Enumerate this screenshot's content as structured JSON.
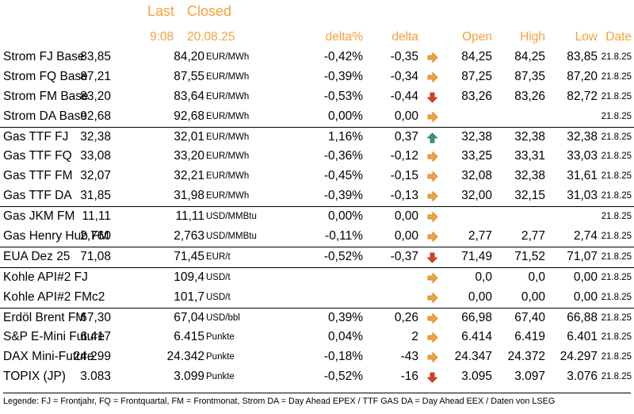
{
  "header": {
    "last_label": "Last",
    "closed_label": "Closed",
    "last_time": "9:08",
    "closed_date": "20.08.25",
    "col_pct": "delta%",
    "col_delta": "delta",
    "col_open": "Open",
    "col_high": "High",
    "col_low": "Low",
    "col_date": "Date"
  },
  "colors": {
    "orange": "#f6a23a",
    "arrow_right": "#f6a23a",
    "arrow_down": "#e0401e",
    "arrow_up": "#3c9a6a"
  },
  "rows": [
    {
      "name": "Strom FJ Base",
      "last": "83,85",
      "closed": "84,20",
      "unit": "EUR/MWh",
      "pct": "-0,42%",
      "delta": "-0,35",
      "arrow": "right",
      "open": "84,25",
      "high": "84,25",
      "low": "83,85",
      "date": "21.8.25",
      "sep": false
    },
    {
      "name": "Strom FQ Base",
      "last": "87,21",
      "closed": "87,55",
      "unit": "EUR/MWh",
      "pct": "-0,39%",
      "delta": "-0,34",
      "arrow": "right",
      "open": "87,25",
      "high": "87,35",
      "low": "87,20",
      "date": "21.8.25",
      "sep": false
    },
    {
      "name": "Strom FM Base",
      "last": "83,20",
      "closed": "83,64",
      "unit": "EUR/MWh",
      "pct": "-0,53%",
      "delta": "-0,44",
      "arrow": "down",
      "open": "83,26",
      "high": "83,26",
      "low": "82,72",
      "date": "21.8.25",
      "sep": false
    },
    {
      "name": "Strom DA Base",
      "last": "92,68",
      "closed": "92,68",
      "unit": "EUR/MWh",
      "pct": "0,00%",
      "delta": "0,00",
      "arrow": "right",
      "open": "",
      "high": "",
      "low": "",
      "date": "21.8.25",
      "sep": false
    },
    {
      "name": "Gas TTF FJ",
      "last": "32,38",
      "closed": "32,01",
      "unit": "EUR/MWh",
      "pct": "1,16%",
      "delta": "0,37",
      "arrow": "up",
      "open": "32,38",
      "high": "32,38",
      "low": "32,38",
      "date": "21.8.25",
      "sep": true
    },
    {
      "name": "Gas TTF FQ",
      "last": "33,08",
      "closed": "33,20",
      "unit": "EUR/MWh",
      "pct": "-0,36%",
      "delta": "-0,12",
      "arrow": "right",
      "open": "33,25",
      "high": "33,31",
      "low": "33,03",
      "date": "21.8.25",
      "sep": false
    },
    {
      "name": "Gas TTF FM",
      "last": "32,07",
      "closed": "32,21",
      "unit": "EUR/MWh",
      "pct": "-0,45%",
      "delta": "-0,15",
      "arrow": "right",
      "open": "32,08",
      "high": "32,38",
      "low": "31,61",
      "date": "21.8.25",
      "sep": false
    },
    {
      "name": "Gas TTF DA",
      "last": "31,85",
      "closed": "31,98",
      "unit": "EUR/MWh",
      "pct": "-0,39%",
      "delta": "-0,13",
      "arrow": "right",
      "open": "32,00",
      "high": "32,15",
      "low": "31,03",
      "date": "21.8.25",
      "sep": false
    },
    {
      "name": "Gas JKM FM",
      "last": "11,11",
      "closed": "11,11",
      "unit": "USD/MMBtu",
      "pct": "0,00%",
      "delta": "0,00",
      "arrow": "right",
      "open": "",
      "high": "",
      "low": "",
      "date": "21.8.25",
      "sep": true
    },
    {
      "name": "Gas Henry Hub FM",
      "last": "2,760",
      "closed": "2,763",
      "unit": "USD/MMBtu",
      "pct": "-0,11%",
      "delta": "0,00",
      "arrow": "right",
      "open": "2,77",
      "high": "2,77",
      "low": "2,74",
      "date": "21.8.25",
      "sep": false
    },
    {
      "name": "EUA Dez 25",
      "last": "71,08",
      "closed": "71,45",
      "unit": "EUR/t",
      "pct": "-0,52%",
      "delta": "-0,37",
      "arrow": "down",
      "open": "71,49",
      "high": "71,52",
      "low": "71,07",
      "date": "21.8.25",
      "sep": true
    },
    {
      "name": "Kohle API#2 FJ",
      "last": "",
      "closed": "109,4",
      "unit": "USD/t",
      "pct": "",
      "delta": "",
      "arrow": "right",
      "open": "0,0",
      "high": "0,0",
      "low": "0,00",
      "date": "21.8.25",
      "sep": true
    },
    {
      "name": "Kohle API#2 FMc2",
      "last": "",
      "closed": "101,7",
      "unit": "USD/t",
      "pct": "",
      "delta": "",
      "arrow": "right",
      "open": "0,00",
      "high": "0,00",
      "low": "0,00",
      "date": "21.8.25",
      "sep": false
    },
    {
      "name": "Erdöl Brent FM",
      "last": "67,30",
      "closed": "67,04",
      "unit": "USD/bbl",
      "pct": "0,39%",
      "delta": "0,26",
      "arrow": "right",
      "open": "66,98",
      "high": "67,40",
      "low": "66,88",
      "date": "21.8.25",
      "sep": true
    },
    {
      "name": "S&P E-Mini Future",
      "last": "6.417",
      "closed": "6.415",
      "unit": "Punkte",
      "pct": "0,04%",
      "delta": "2",
      "arrow": "right",
      "open": "6.414",
      "high": "6.419",
      "low": "6.401",
      "date": "21.8.25",
      "sep": false
    },
    {
      "name": "DAX Mini-Future",
      "last": "24.299",
      "closed": "24.342",
      "unit": "Punkte",
      "pct": "-0,18%",
      "delta": "-43",
      "arrow": "right",
      "open": "24.347",
      "high": "24.372",
      "low": "24.297",
      "date": "21.8.25",
      "sep": false
    },
    {
      "name": "TOPIX (JP)",
      "last": "3.083",
      "closed": "3.099",
      "unit": "Punkte",
      "pct": "-0,52%",
      "delta": "-16",
      "arrow": "down",
      "open": "3.095",
      "high": "3.097",
      "low": "3.076",
      "date": "21.8.25",
      "sep": false
    }
  ],
  "legend": "Legende: FJ = Frontjahr, FQ = Frontquartal, FM = Frontmonat, Strom DA = Day Ahead EPEX / TTF GAS DA = Day Ahead EEX / Daten von LSEG"
}
